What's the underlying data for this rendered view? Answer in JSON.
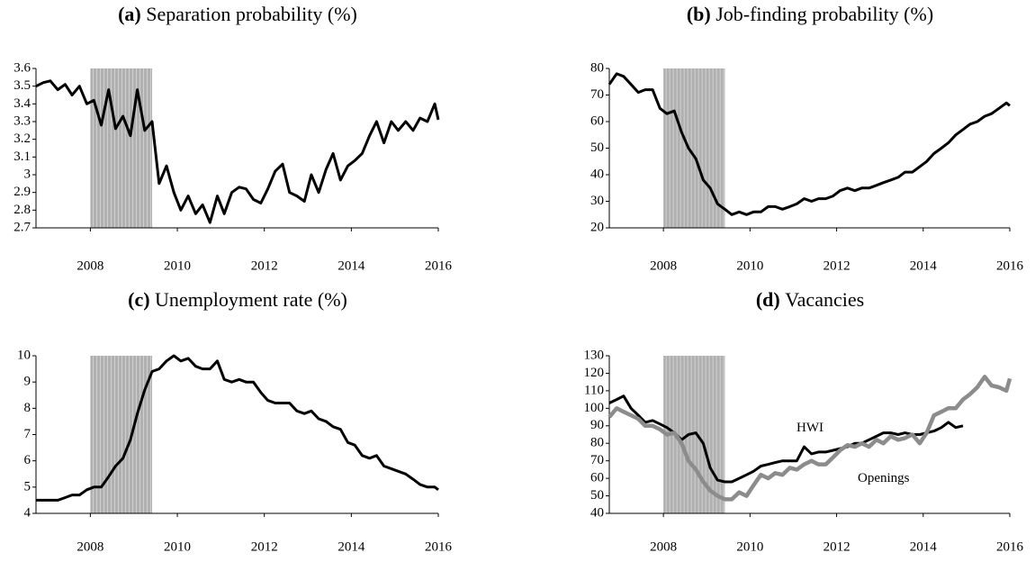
{
  "chart_data": [
    {
      "type": "line",
      "label": "(a)",
      "title": "Separation probability (%)",
      "x": [
        2006.75,
        2006.92,
        2007.08,
        2007.25,
        2007.42,
        2007.58,
        2007.75,
        2007.92,
        2008.08,
        2008.25,
        2008.42,
        2008.58,
        2008.75,
        2008.92,
        2009.08,
        2009.25,
        2009.42,
        2009.58,
        2009.75,
        2009.92,
        2010.08,
        2010.25,
        2010.42,
        2010.58,
        2010.75,
        2010.92,
        2011.08,
        2011.25,
        2011.42,
        2011.58,
        2011.75,
        2011.92,
        2012.08,
        2012.25,
        2012.42,
        2012.58,
        2012.75,
        2012.92,
        2013.08,
        2013.25,
        2013.42,
        2013.58,
        2013.75,
        2013.92,
        2014.08,
        2014.25,
        2014.42,
        2014.58,
        2014.75,
        2014.92,
        2015.08,
        2015.25,
        2015.42,
        2015.58,
        2015.75,
        2015.92,
        2016.0
      ],
      "series": [
        {
          "color": "#000000",
          "values": [
            3.5,
            3.52,
            3.53,
            3.48,
            3.51,
            3.45,
            3.5,
            3.4,
            3.42,
            3.28,
            3.48,
            3.26,
            3.33,
            3.22,
            3.48,
            3.25,
            3.3,
            2.95,
            3.05,
            2.9,
            2.8,
            2.88,
            2.78,
            2.83,
            2.73,
            2.88,
            2.78,
            2.9,
            2.93,
            2.92,
            2.86,
            2.84,
            2.92,
            3.02,
            3.06,
            2.9,
            2.88,
            2.85,
            3.0,
            2.9,
            3.03,
            3.12,
            2.97,
            3.05,
            3.08,
            3.12,
            3.22,
            3.3,
            3.18,
            3.3,
            3.25,
            3.3,
            3.25,
            3.32,
            3.3,
            3.4,
            3.31
          ]
        }
      ],
      "recession": [
        2008.0,
        2009.42
      ],
      "xlim": [
        2006.75,
        2016.0
      ],
      "xticks": [
        2008,
        2010,
        2012,
        2014,
        2016
      ],
      "ylim": [
        2.7,
        3.6
      ],
      "yticks": [
        2.7,
        2.8,
        2.9,
        3,
        3.1,
        3.2,
        3.3,
        3.4,
        3.5,
        3.6
      ]
    },
    {
      "type": "line",
      "label": "(b)",
      "title": "Job-finding probability (%)",
      "x": [
        2006.75,
        2006.92,
        2007.08,
        2007.25,
        2007.42,
        2007.58,
        2007.75,
        2007.92,
        2008.08,
        2008.25,
        2008.42,
        2008.58,
        2008.75,
        2008.92,
        2009.08,
        2009.25,
        2009.42,
        2009.58,
        2009.75,
        2009.92,
        2010.08,
        2010.25,
        2010.42,
        2010.58,
        2010.75,
        2010.92,
        2011.08,
        2011.25,
        2011.42,
        2011.58,
        2011.75,
        2011.92,
        2012.08,
        2012.25,
        2012.42,
        2012.58,
        2012.75,
        2012.92,
        2013.08,
        2013.25,
        2013.42,
        2013.58,
        2013.75,
        2013.92,
        2014.08,
        2014.25,
        2014.42,
        2014.58,
        2014.75,
        2014.92,
        2015.08,
        2015.25,
        2015.42,
        2015.58,
        2015.75,
        2015.92,
        2016.0
      ],
      "series": [
        {
          "color": "#000000",
          "values": [
            74,
            78,
            77,
            74,
            71,
            72,
            72,
            65,
            63,
            64,
            56,
            50,
            46,
            38,
            35,
            29,
            27,
            25,
            26,
            25,
            26,
            26,
            28,
            28,
            27,
            28,
            29,
            31,
            30,
            31,
            31,
            32,
            34,
            35,
            34,
            35,
            35,
            36,
            37,
            38,
            39,
            41,
            41,
            43,
            45,
            48,
            50,
            52,
            55,
            57,
            59,
            60,
            62,
            63,
            65,
            67,
            66
          ]
        }
      ],
      "recession": [
        2008.0,
        2009.42
      ],
      "xlim": [
        2006.75,
        2016.0
      ],
      "xticks": [
        2008,
        2010,
        2012,
        2014,
        2016
      ],
      "ylim": [
        20,
        80
      ],
      "yticks": [
        20,
        30,
        40,
        50,
        60,
        70,
        80
      ]
    },
    {
      "type": "line",
      "label": "(c)",
      "title": "Unemployment rate (%)",
      "x": [
        2006.75,
        2006.92,
        2007.08,
        2007.25,
        2007.42,
        2007.58,
        2007.75,
        2007.92,
        2008.08,
        2008.25,
        2008.42,
        2008.58,
        2008.75,
        2008.92,
        2009.08,
        2009.25,
        2009.42,
        2009.58,
        2009.75,
        2009.92,
        2010.08,
        2010.25,
        2010.42,
        2010.58,
        2010.75,
        2010.92,
        2011.08,
        2011.25,
        2011.42,
        2011.58,
        2011.75,
        2011.92,
        2012.08,
        2012.25,
        2012.42,
        2012.58,
        2012.75,
        2012.92,
        2013.08,
        2013.25,
        2013.42,
        2013.58,
        2013.75,
        2013.92,
        2014.08,
        2014.25,
        2014.42,
        2014.58,
        2014.75,
        2014.92,
        2015.08,
        2015.25,
        2015.42,
        2015.58,
        2015.75,
        2015.92,
        2016.0
      ],
      "series": [
        {
          "color": "#000000",
          "values": [
            4.5,
            4.5,
            4.5,
            4.5,
            4.6,
            4.7,
            4.7,
            4.9,
            5.0,
            5.0,
            5.4,
            5.8,
            6.1,
            6.8,
            7.8,
            8.7,
            9.4,
            9.5,
            9.8,
            10.0,
            9.8,
            9.9,
            9.6,
            9.5,
            9.5,
            9.8,
            9.1,
            9.0,
            9.1,
            9.0,
            9.0,
            8.6,
            8.3,
            8.2,
            8.2,
            8.2,
            7.9,
            7.8,
            7.9,
            7.6,
            7.5,
            7.3,
            7.2,
            6.7,
            6.6,
            6.2,
            6.1,
            6.2,
            5.8,
            5.7,
            5.6,
            5.5,
            5.3,
            5.1,
            5.0,
            5.0,
            4.9
          ]
        }
      ],
      "recession": [
        2008.0,
        2009.42
      ],
      "xlim": [
        2006.75,
        2016.0
      ],
      "xticks": [
        2008,
        2010,
        2012,
        2014,
        2016
      ],
      "ylim": [
        4,
        10
      ],
      "yticks": [
        4,
        5,
        6,
        7,
        8,
        9,
        10
      ]
    },
    {
      "type": "line",
      "label": "(d)",
      "title": "Vacancies",
      "x": [
        2006.75,
        2006.92,
        2007.08,
        2007.25,
        2007.42,
        2007.58,
        2007.75,
        2007.92,
        2008.08,
        2008.25,
        2008.42,
        2008.58,
        2008.75,
        2008.92,
        2009.08,
        2009.25,
        2009.42,
        2009.58,
        2009.75,
        2009.92,
        2010.08,
        2010.25,
        2010.42,
        2010.58,
        2010.75,
        2010.92,
        2011.08,
        2011.25,
        2011.42,
        2011.58,
        2011.75,
        2011.92,
        2012.08,
        2012.25,
        2012.42,
        2012.58,
        2012.75,
        2012.92,
        2013.08,
        2013.25,
        2013.42,
        2013.58,
        2013.75,
        2013.92,
        2014.08,
        2014.25,
        2014.42,
        2014.58,
        2014.75,
        2014.92,
        2015.08,
        2015.25,
        2015.42,
        2015.58,
        2015.75,
        2015.92,
        2016.0
      ],
      "series": [
        {
          "name": "HWI",
          "color": "#000000",
          "values": [
            103,
            105,
            107,
            100,
            96,
            92,
            93,
            91,
            89,
            86,
            82,
            85,
            86,
            80,
            66,
            59,
            58,
            58,
            60,
            62,
            64,
            67,
            68,
            69,
            70,
            70,
            70,
            78,
            74,
            75,
            75,
            76,
            77,
            78,
            80,
            80,
            82,
            84,
            86,
            86,
            85,
            86,
            85,
            85,
            86,
            87,
            89,
            92,
            89,
            90,
            null,
            null,
            null,
            null,
            null,
            null,
            null
          ]
        },
        {
          "name": "Openings",
          "color": "#8c8c8c",
          "values": [
            95,
            100,
            98,
            96,
            94,
            90,
            90,
            88,
            85,
            86,
            80,
            70,
            65,
            58,
            53,
            50,
            48,
            48,
            52,
            50,
            56,
            62,
            60,
            63,
            62,
            66,
            65,
            68,
            70,
            68,
            68,
            72,
            76,
            79,
            78,
            80,
            78,
            82,
            80,
            84,
            82,
            83,
            85,
            80,
            86,
            96,
            98,
            100,
            100,
            105,
            108,
            112,
            118,
            113,
            112,
            110,
            117
          ]
        }
      ],
      "recession": [
        2008.0,
        2009.42
      ],
      "xlim": [
        2006.75,
        2016.0
      ],
      "xticks": [
        2008,
        2010,
        2012,
        2014,
        2016
      ],
      "ylim": [
        40,
        130
      ],
      "yticks": [
        40,
        50,
        60,
        70,
        80,
        90,
        100,
        110,
        120,
        130
      ]
    }
  ]
}
